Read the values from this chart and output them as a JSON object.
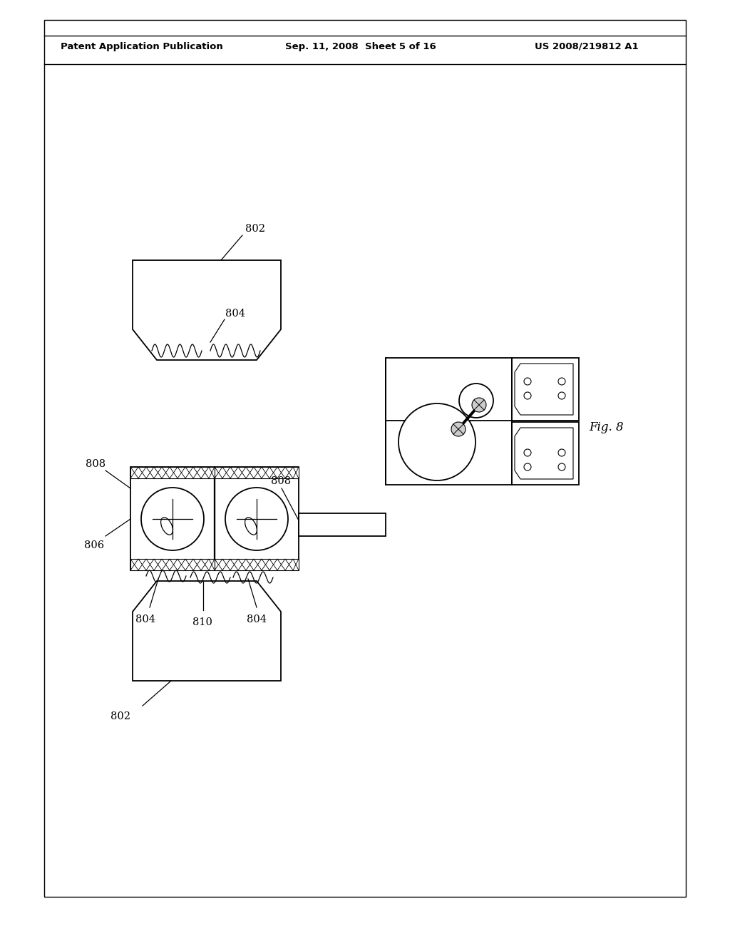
{
  "bg_color": "#ffffff",
  "line_color": "#000000",
  "header_left": "Patent Application Publication",
  "header_mid": "Sep. 11, 2008  Sheet 5 of 16",
  "header_right": "US 2008/219812 A1",
  "fig_label": "Fig. 8",
  "labels": {
    "802_top": "802",
    "802_bot": "802",
    "804_top": "804",
    "804_botL": "804",
    "804_botR": "804",
    "806": "806",
    "808_left": "808",
    "808_right": "808",
    "810": "810"
  }
}
